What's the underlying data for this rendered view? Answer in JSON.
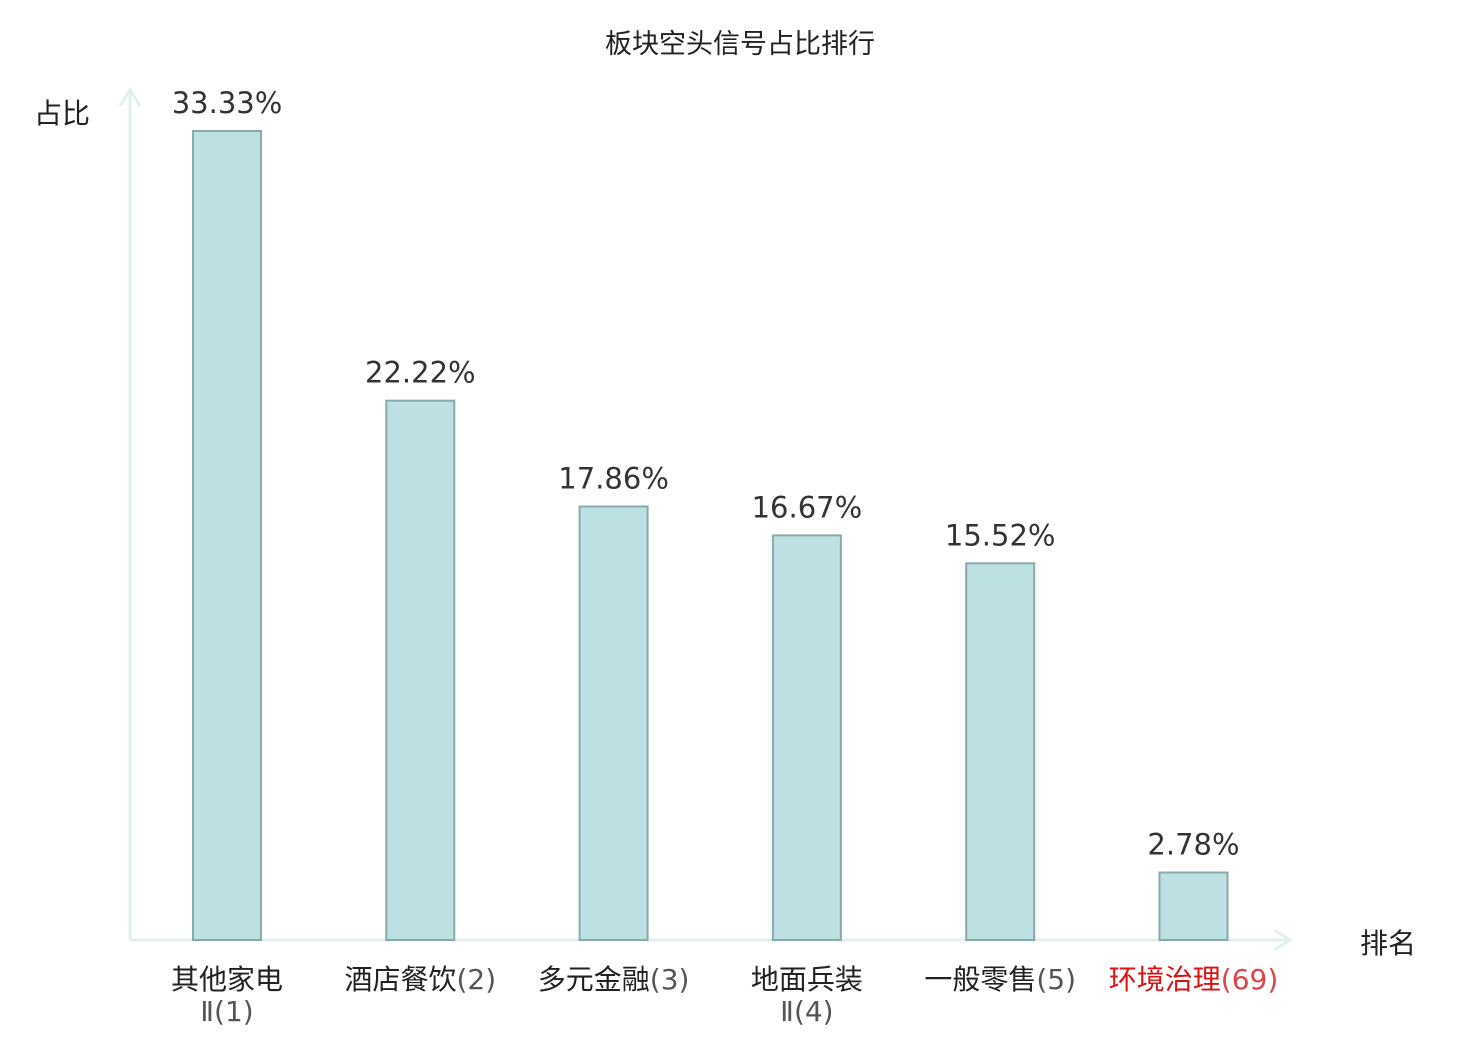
{
  "chart_data": {
    "type": "bar",
    "title": "板块空头信号占比排行",
    "ylabel": "占比",
    "xlabel": "排名",
    "ylim": [
      0,
      35
    ],
    "categories": [
      {
        "name": "其他家电",
        "rank": "Ⅱ(1)",
        "highlight": false
      },
      {
        "name": "酒店餐饮",
        "rank": "(2)",
        "highlight": false
      },
      {
        "name": "多元金融",
        "rank": "(3)",
        "highlight": false
      },
      {
        "name": "地面兵装",
        "rank": "Ⅱ(4)",
        "highlight": false
      },
      {
        "name": "一般零售",
        "rank": "(5)",
        "highlight": false
      },
      {
        "name": "环境治理",
        "rank": "(69)",
        "highlight": true
      }
    ],
    "values": [
      33.33,
      22.22,
      17.86,
      16.67,
      15.52,
      2.78
    ],
    "data_labels": [
      "33.33%",
      "22.22%",
      "17.86%",
      "16.67%",
      "15.52%",
      "2.78%"
    ],
    "bar_color": "#bde0e2",
    "bar_edge_color": "#8aa9ab",
    "axis_color": "#dff0ee",
    "highlight_color": "#dd1111"
  }
}
